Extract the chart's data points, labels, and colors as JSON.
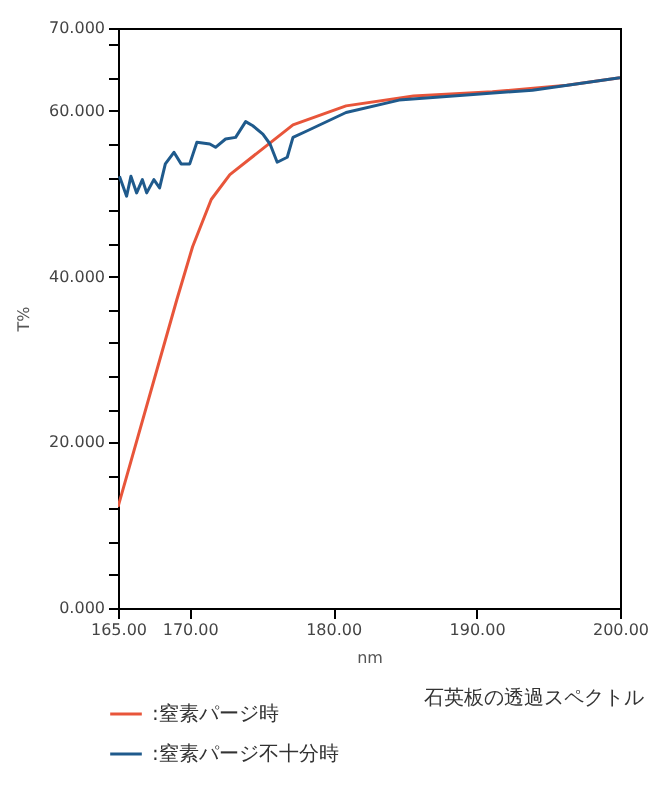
{
  "chart_data": {
    "type": "line",
    "xlabel": "nm",
    "ylabel": "T%",
    "annotations": [
      "石英板の透過スペクトル"
    ],
    "xlim": [
      165,
      200
    ],
    "ylim": [
      0,
      70
    ],
    "xticks": [
      {
        "value": 165,
        "label": "165.00"
      },
      {
        "value": 170,
        "label": "170.00"
      },
      {
        "value": 180,
        "label": "180.00"
      },
      {
        "value": 190,
        "label": "190.00"
      },
      {
        "value": 200,
        "label": "200.00"
      }
    ],
    "yticks": [
      {
        "value": 0,
        "label": "0.000"
      },
      {
        "value": 4,
        "label": null
      },
      {
        "value": 8,
        "label": null
      },
      {
        "value": 12,
        "label": null
      },
      {
        "value": 16,
        "label": null
      },
      {
        "value": 20,
        "label": "20.000"
      },
      {
        "value": 24,
        "label": null
      },
      {
        "value": 28,
        "label": null
      },
      {
        "value": 32,
        "label": null
      },
      {
        "value": 36,
        "label": null
      },
      {
        "value": 40,
        "label": "40.000"
      },
      {
        "value": 44,
        "label": null
      },
      {
        "value": 48,
        "label": null
      },
      {
        "value": 52,
        "label": null
      },
      {
        "value": 56,
        "label": null
      },
      {
        "value": 60,
        "label": "60.000"
      },
      {
        "value": 64,
        "label": null
      },
      {
        "value": 68,
        "label": null
      },
      {
        "value": 70,
        "label": "70.000"
      }
    ],
    "grid": false,
    "legend": "bottom",
    "series": [
      {
        "name": ":窒素パージ時",
        "color": "#e8553a",
        "x": [
          165.0,
          169.1,
          170.2,
          171.5,
          172.8,
          174.7,
          177.2,
          180.9,
          185.6,
          191.1,
          196.3,
          200.0
        ],
        "values": [
          12.2,
          37.2,
          43.6,
          49.3,
          52.3,
          54.9,
          58.3,
          60.6,
          61.8,
          62.3,
          63.1,
          64.0
        ]
      },
      {
        "name": ":窒素パージ不十分時",
        "color": "#1f5a8c",
        "x": [
          165.1,
          165.6,
          165.9,
          166.3,
          166.7,
          167.0,
          167.5,
          167.9,
          168.3,
          168.9,
          169.4,
          170.0,
          170.5,
          171.4,
          171.8,
          172.5,
          173.2,
          173.9,
          174.4,
          175.1,
          175.6,
          176.1,
          176.8,
          177.2,
          178.2,
          180.9,
          184.6,
          189.3,
          193.9,
          200.0
        ],
        "values": [
          52.1,
          49.7,
          52.1,
          50.1,
          51.7,
          50.1,
          51.7,
          50.7,
          53.6,
          55.0,
          53.6,
          53.6,
          56.2,
          56.0,
          55.6,
          56.6,
          56.8,
          58.7,
          58.2,
          57.2,
          56.0,
          53.8,
          54.4,
          56.8,
          57.6,
          59.8,
          61.3,
          61.9,
          62.5,
          64.0
        ]
      }
    ]
  }
}
